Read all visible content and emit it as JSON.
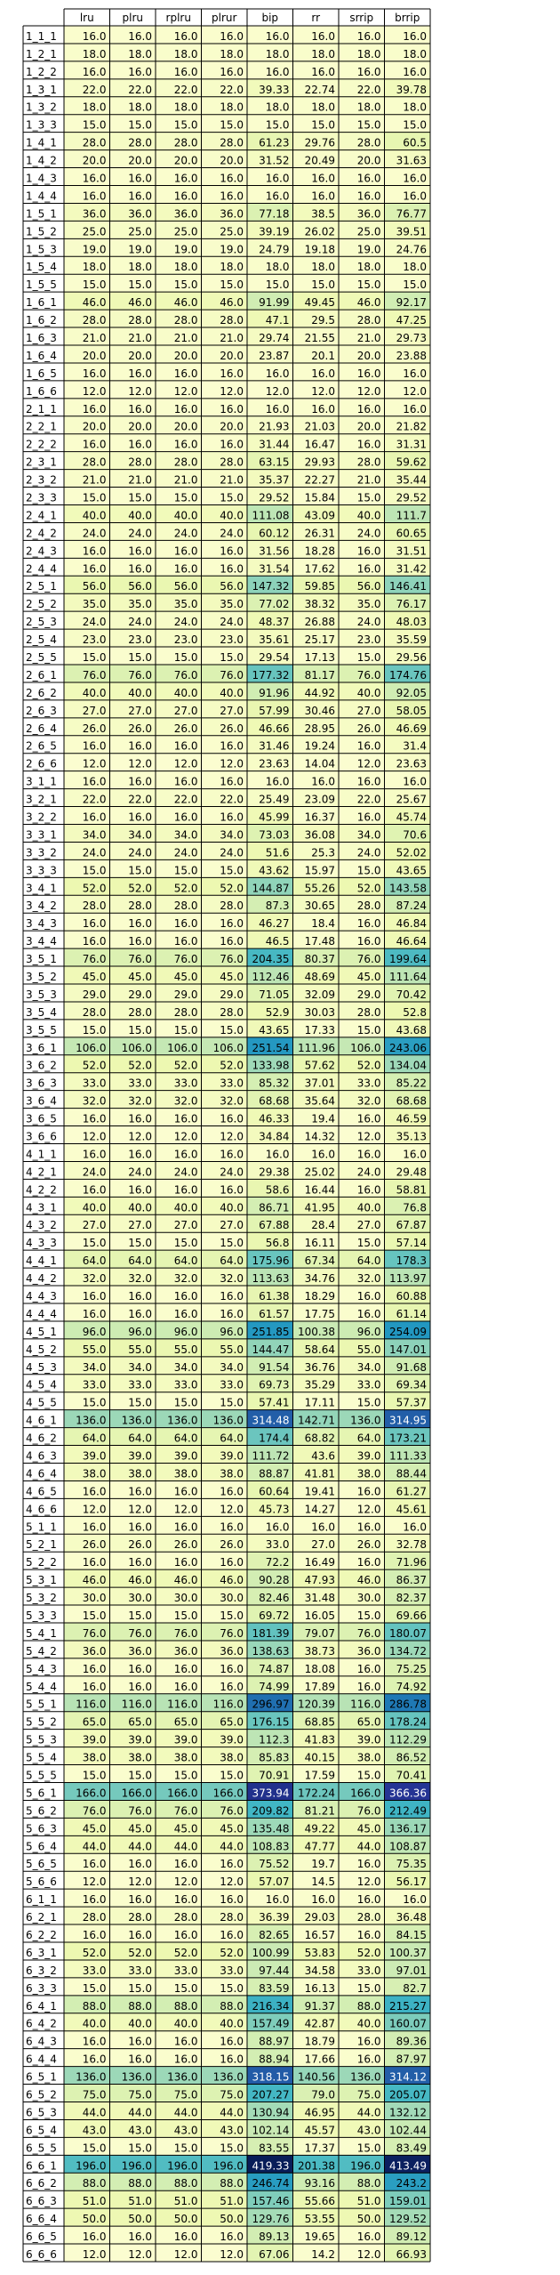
{
  "chart_data": {
    "type": "heatmap",
    "columns": [
      "lru",
      "plru",
      "rplru",
      "plrur",
      "bip",
      "rr",
      "srrip",
      "brrip"
    ],
    "colormap": {
      "name": "YlGnBu",
      "stops": [
        "#ffffd9",
        "#edf8b1",
        "#c7e9b4",
        "#7fcdbb",
        "#41b6c4",
        "#1d91c0",
        "#225ea8",
        "#253494",
        "#081d58"
      ]
    },
    "row_labels": [
      "1_1_1",
      "1_2_1",
      "1_2_2",
      "1_3_1",
      "1_3_2",
      "1_3_3",
      "1_4_1",
      "1_4_2",
      "1_4_3",
      "1_4_4",
      "1_5_1",
      "1_5_2",
      "1_5_3",
      "1_5_4",
      "1_5_5",
      "1_6_1",
      "1_6_2",
      "1_6_3",
      "1_6_4",
      "1_6_5",
      "1_6_6",
      "2_1_1",
      "2_2_1",
      "2_2_2",
      "2_3_1",
      "2_3_2",
      "2_3_3",
      "2_4_1",
      "2_4_2",
      "2_4_3",
      "2_4_4",
      "2_5_1",
      "2_5_2",
      "2_5_3",
      "2_5_4",
      "2_5_5",
      "2_6_1",
      "2_6_2",
      "2_6_3",
      "2_6_4",
      "2_6_5",
      "2_6_6",
      "3_1_1",
      "3_2_1",
      "3_2_2",
      "3_3_1",
      "3_3_2",
      "3_3_3",
      "3_4_1",
      "3_4_2",
      "3_4_3",
      "3_4_4",
      "3_5_1",
      "3_5_2",
      "3_5_3",
      "3_5_4",
      "3_5_5",
      "3_6_1",
      "3_6_2",
      "3_6_3",
      "3_6_4",
      "3_6_5",
      "3_6_6",
      "4_1_1",
      "4_2_1",
      "4_2_2",
      "4_3_1",
      "4_3_2",
      "4_3_3",
      "4_4_1",
      "4_4_2",
      "4_4_3",
      "4_4_4",
      "4_5_1",
      "4_5_2",
      "4_5_3",
      "4_5_4",
      "4_5_5",
      "4_6_1",
      "4_6_2",
      "4_6_3",
      "4_6_4",
      "4_6_5",
      "4_6_6",
      "5_1_1",
      "5_2_1",
      "5_2_2",
      "5_3_1",
      "5_3_2",
      "5_3_3",
      "5_4_1",
      "5_4_2",
      "5_4_3",
      "5_4_4",
      "5_5_1",
      "5_5_2",
      "5_5_3",
      "5_5_4",
      "5_5_5",
      "5_6_1",
      "5_6_2",
      "5_6_3",
      "5_6_4",
      "5_6_5",
      "5_6_6",
      "6_1_1",
      "6_2_1",
      "6_2_2",
      "6_3_1",
      "6_3_2",
      "6_3_3",
      "6_4_1",
      "6_4_2",
      "6_4_3",
      "6_4_4",
      "6_5_1",
      "6_5_2",
      "6_5_3",
      "6_5_4",
      "6_5_5",
      "6_6_1",
      "6_6_2",
      "6_6_3",
      "6_6_4",
      "6_6_5",
      "6_6_6"
    ],
    "values": [
      [
        16.0,
        16.0,
        16.0,
        16.0,
        16.0,
        16.0,
        16.0,
        16.0
      ],
      [
        18.0,
        18.0,
        18.0,
        18.0,
        18.0,
        18.0,
        18.0,
        18.0
      ],
      [
        16.0,
        16.0,
        16.0,
        16.0,
        16.0,
        16.0,
        16.0,
        16.0
      ],
      [
        22.0,
        22.0,
        22.0,
        22.0,
        39.33,
        22.74,
        22.0,
        39.78
      ],
      [
        18.0,
        18.0,
        18.0,
        18.0,
        18.0,
        18.0,
        18.0,
        18.0
      ],
      [
        15.0,
        15.0,
        15.0,
        15.0,
        15.0,
        15.0,
        15.0,
        15.0
      ],
      [
        28.0,
        28.0,
        28.0,
        28.0,
        61.23,
        29.76,
        28.0,
        60.5
      ],
      [
        20.0,
        20.0,
        20.0,
        20.0,
        31.52,
        20.49,
        20.0,
        31.63
      ],
      [
        16.0,
        16.0,
        16.0,
        16.0,
        16.0,
        16.0,
        16.0,
        16.0
      ],
      [
        16.0,
        16.0,
        16.0,
        16.0,
        16.0,
        16.0,
        16.0,
        16.0
      ],
      [
        36.0,
        36.0,
        36.0,
        36.0,
        77.18,
        38.5,
        36.0,
        76.77
      ],
      [
        25.0,
        25.0,
        25.0,
        25.0,
        39.19,
        26.02,
        25.0,
        39.51
      ],
      [
        19.0,
        19.0,
        19.0,
        19.0,
        24.79,
        19.18,
        19.0,
        24.76
      ],
      [
        18.0,
        18.0,
        18.0,
        18.0,
        18.0,
        18.0,
        18.0,
        18.0
      ],
      [
        15.0,
        15.0,
        15.0,
        15.0,
        15.0,
        15.0,
        15.0,
        15.0
      ],
      [
        46.0,
        46.0,
        46.0,
        46.0,
        91.99,
        49.45,
        46.0,
        92.17
      ],
      [
        28.0,
        28.0,
        28.0,
        28.0,
        47.1,
        29.5,
        28.0,
        47.25
      ],
      [
        21.0,
        21.0,
        21.0,
        21.0,
        29.74,
        21.55,
        21.0,
        29.73
      ],
      [
        20.0,
        20.0,
        20.0,
        20.0,
        23.87,
        20.1,
        20.0,
        23.88
      ],
      [
        16.0,
        16.0,
        16.0,
        16.0,
        16.0,
        16.0,
        16.0,
        16.0
      ],
      [
        12.0,
        12.0,
        12.0,
        12.0,
        12.0,
        12.0,
        12.0,
        12.0
      ],
      [
        16.0,
        16.0,
        16.0,
        16.0,
        16.0,
        16.0,
        16.0,
        16.0
      ],
      [
        20.0,
        20.0,
        20.0,
        20.0,
        21.93,
        21.03,
        20.0,
        21.82
      ],
      [
        16.0,
        16.0,
        16.0,
        16.0,
        31.44,
        16.47,
        16.0,
        31.31
      ],
      [
        28.0,
        28.0,
        28.0,
        28.0,
        63.15,
        29.93,
        28.0,
        59.62
      ],
      [
        21.0,
        21.0,
        21.0,
        21.0,
        35.37,
        22.27,
        21.0,
        35.44
      ],
      [
        15.0,
        15.0,
        15.0,
        15.0,
        29.52,
        15.84,
        15.0,
        29.52
      ],
      [
        40.0,
        40.0,
        40.0,
        40.0,
        111.08,
        43.09,
        40.0,
        111.7
      ],
      [
        24.0,
        24.0,
        24.0,
        24.0,
        60.12,
        26.31,
        24.0,
        60.65
      ],
      [
        16.0,
        16.0,
        16.0,
        16.0,
        31.56,
        18.28,
        16.0,
        31.51
      ],
      [
        16.0,
        16.0,
        16.0,
        16.0,
        31.54,
        17.62,
        16.0,
        31.42
      ],
      [
        56.0,
        56.0,
        56.0,
        56.0,
        147.32,
        59.85,
        56.0,
        146.41
      ],
      [
        35.0,
        35.0,
        35.0,
        35.0,
        77.02,
        38.32,
        35.0,
        76.17
      ],
      [
        24.0,
        24.0,
        24.0,
        24.0,
        48.37,
        26.88,
        24.0,
        48.03
      ],
      [
        23.0,
        23.0,
        23.0,
        23.0,
        35.61,
        25.17,
        23.0,
        35.59
      ],
      [
        15.0,
        15.0,
        15.0,
        15.0,
        29.54,
        17.13,
        15.0,
        29.56
      ],
      [
        76.0,
        76.0,
        76.0,
        76.0,
        177.32,
        81.17,
        76.0,
        174.76
      ],
      [
        40.0,
        40.0,
        40.0,
        40.0,
        91.96,
        44.92,
        40.0,
        92.05
      ],
      [
        27.0,
        27.0,
        27.0,
        27.0,
        57.99,
        30.46,
        27.0,
        58.05
      ],
      [
        26.0,
        26.0,
        26.0,
        26.0,
        46.66,
        28.95,
        26.0,
        46.69
      ],
      [
        16.0,
        16.0,
        16.0,
        16.0,
        31.46,
        19.24,
        16.0,
        31.4
      ],
      [
        12.0,
        12.0,
        12.0,
        12.0,
        23.63,
        14.04,
        12.0,
        23.63
      ],
      [
        16.0,
        16.0,
        16.0,
        16.0,
        16.0,
        16.0,
        16.0,
        16.0
      ],
      [
        22.0,
        22.0,
        22.0,
        22.0,
        25.49,
        23.09,
        22.0,
        25.67
      ],
      [
        16.0,
        16.0,
        16.0,
        16.0,
        45.99,
        16.37,
        16.0,
        45.74
      ],
      [
        34.0,
        34.0,
        34.0,
        34.0,
        73.03,
        36.08,
        34.0,
        70.6
      ],
      [
        24.0,
        24.0,
        24.0,
        24.0,
        51.6,
        25.3,
        24.0,
        52.02
      ],
      [
        15.0,
        15.0,
        15.0,
        15.0,
        43.62,
        15.97,
        15.0,
        43.65
      ],
      [
        52.0,
        52.0,
        52.0,
        52.0,
        144.87,
        55.26,
        52.0,
        143.58
      ],
      [
        28.0,
        28.0,
        28.0,
        28.0,
        87.3,
        30.65,
        28.0,
        87.24
      ],
      [
        16.0,
        16.0,
        16.0,
        16.0,
        46.27,
        18.4,
        16.0,
        46.84
      ],
      [
        16.0,
        16.0,
        16.0,
        16.0,
        46.5,
        17.48,
        16.0,
        46.64
      ],
      [
        76.0,
        76.0,
        76.0,
        76.0,
        204.35,
        80.37,
        76.0,
        199.64
      ],
      [
        45.0,
        45.0,
        45.0,
        45.0,
        112.46,
        48.69,
        45.0,
        111.64
      ],
      [
        29.0,
        29.0,
        29.0,
        29.0,
        71.05,
        32.09,
        29.0,
        70.42
      ],
      [
        28.0,
        28.0,
        28.0,
        28.0,
        52.9,
        30.03,
        28.0,
        52.8
      ],
      [
        15.0,
        15.0,
        15.0,
        15.0,
        43.65,
        17.33,
        15.0,
        43.68
      ],
      [
        106.0,
        106.0,
        106.0,
        106.0,
        251.54,
        111.96,
        106.0,
        243.06
      ],
      [
        52.0,
        52.0,
        52.0,
        52.0,
        133.98,
        57.62,
        52.0,
        134.04
      ],
      [
        33.0,
        33.0,
        33.0,
        33.0,
        85.32,
        37.01,
        33.0,
        85.22
      ],
      [
        32.0,
        32.0,
        32.0,
        32.0,
        68.68,
        35.64,
        32.0,
        68.68
      ],
      [
        16.0,
        16.0,
        16.0,
        16.0,
        46.33,
        19.4,
        16.0,
        46.59
      ],
      [
        12.0,
        12.0,
        12.0,
        12.0,
        34.84,
        14.32,
        12.0,
        35.13
      ],
      [
        16.0,
        16.0,
        16.0,
        16.0,
        16.0,
        16.0,
        16.0,
        16.0
      ],
      [
        24.0,
        24.0,
        24.0,
        24.0,
        29.38,
        25.02,
        24.0,
        29.48
      ],
      [
        16.0,
        16.0,
        16.0,
        16.0,
        58.6,
        16.44,
        16.0,
        58.81
      ],
      [
        40.0,
        40.0,
        40.0,
        40.0,
        86.71,
        41.95,
        40.0,
        76.8
      ],
      [
        27.0,
        27.0,
        27.0,
        27.0,
        67.88,
        28.4,
        27.0,
        67.87
      ],
      [
        15.0,
        15.0,
        15.0,
        15.0,
        56.8,
        16.11,
        15.0,
        57.14
      ],
      [
        64.0,
        64.0,
        64.0,
        64.0,
        175.96,
        67.34,
        64.0,
        178.3
      ],
      [
        32.0,
        32.0,
        32.0,
        32.0,
        113.63,
        34.76,
        32.0,
        113.97
      ],
      [
        16.0,
        16.0,
        16.0,
        16.0,
        61.38,
        18.29,
        16.0,
        60.88
      ],
      [
        16.0,
        16.0,
        16.0,
        16.0,
        61.57,
        17.75,
        16.0,
        61.14
      ],
      [
        96.0,
        96.0,
        96.0,
        96.0,
        251.85,
        100.38,
        96.0,
        254.09
      ],
      [
        55.0,
        55.0,
        55.0,
        55.0,
        144.47,
        58.64,
        55.0,
        147.01
      ],
      [
        34.0,
        34.0,
        34.0,
        34.0,
        91.54,
        36.76,
        34.0,
        91.68
      ],
      [
        33.0,
        33.0,
        33.0,
        33.0,
        69.73,
        35.29,
        33.0,
        69.34
      ],
      [
        15.0,
        15.0,
        15.0,
        15.0,
        57.41,
        17.11,
        15.0,
        57.37
      ],
      [
        136.0,
        136.0,
        136.0,
        136.0,
        314.48,
        142.71,
        136.0,
        314.95
      ],
      [
        64.0,
        64.0,
        64.0,
        64.0,
        174.4,
        68.82,
        64.0,
        173.21
      ],
      [
        39.0,
        39.0,
        39.0,
        39.0,
        111.72,
        43.6,
        39.0,
        111.33
      ],
      [
        38.0,
        38.0,
        38.0,
        38.0,
        88.87,
        41.81,
        38.0,
        88.44
      ],
      [
        16.0,
        16.0,
        16.0,
        16.0,
        60.64,
        19.41,
        16.0,
        61.27
      ],
      [
        12.0,
        12.0,
        12.0,
        12.0,
        45.73,
        14.27,
        12.0,
        45.61
      ],
      [
        16.0,
        16.0,
        16.0,
        16.0,
        16.0,
        16.0,
        16.0,
        16.0
      ],
      [
        26.0,
        26.0,
        26.0,
        26.0,
        33.0,
        27.0,
        26.0,
        32.78
      ],
      [
        16.0,
        16.0,
        16.0,
        16.0,
        72.2,
        16.49,
        16.0,
        71.96
      ],
      [
        46.0,
        46.0,
        46.0,
        46.0,
        90.28,
        47.93,
        46.0,
        86.37
      ],
      [
        30.0,
        30.0,
        30.0,
        30.0,
        82.46,
        31.48,
        30.0,
        82.37
      ],
      [
        15.0,
        15.0,
        15.0,
        15.0,
        69.72,
        16.05,
        15.0,
        69.66
      ],
      [
        76.0,
        76.0,
        76.0,
        76.0,
        181.39,
        79.07,
        76.0,
        180.07
      ],
      [
        36.0,
        36.0,
        36.0,
        36.0,
        138.63,
        38.73,
        36.0,
        134.72
      ],
      [
        16.0,
        16.0,
        16.0,
        16.0,
        74.87,
        18.08,
        16.0,
        75.25
      ],
      [
        16.0,
        16.0,
        16.0,
        16.0,
        74.99,
        17.89,
        16.0,
        74.92
      ],
      [
        116.0,
        116.0,
        116.0,
        116.0,
        296.97,
        120.39,
        116.0,
        286.78
      ],
      [
        65.0,
        65.0,
        65.0,
        65.0,
        176.15,
        68.85,
        65.0,
        178.24
      ],
      [
        39.0,
        39.0,
        39.0,
        39.0,
        112.3,
        41.83,
        39.0,
        112.29
      ],
      [
        38.0,
        38.0,
        38.0,
        38.0,
        85.83,
        40.15,
        38.0,
        86.52
      ],
      [
        15.0,
        15.0,
        15.0,
        15.0,
        70.91,
        17.59,
        15.0,
        70.41
      ],
      [
        166.0,
        166.0,
        166.0,
        166.0,
        373.94,
        172.24,
        166.0,
        366.36
      ],
      [
        76.0,
        76.0,
        76.0,
        76.0,
        209.82,
        81.21,
        76.0,
        212.49
      ],
      [
        45.0,
        45.0,
        45.0,
        45.0,
        135.48,
        49.22,
        45.0,
        136.17
      ],
      [
        44.0,
        44.0,
        44.0,
        44.0,
        108.83,
        47.77,
        44.0,
        108.87
      ],
      [
        16.0,
        16.0,
        16.0,
        16.0,
        75.52,
        19.7,
        16.0,
        75.35
      ],
      [
        12.0,
        12.0,
        12.0,
        12.0,
        57.07,
        14.5,
        12.0,
        56.17
      ],
      [
        16.0,
        16.0,
        16.0,
        16.0,
        16.0,
        16.0,
        16.0,
        16.0
      ],
      [
        28.0,
        28.0,
        28.0,
        28.0,
        36.39,
        29.03,
        28.0,
        36.48
      ],
      [
        16.0,
        16.0,
        16.0,
        16.0,
        82.65,
        16.57,
        16.0,
        84.15
      ],
      [
        52.0,
        52.0,
        52.0,
        52.0,
        100.99,
        53.83,
        52.0,
        100.37
      ],
      [
        33.0,
        33.0,
        33.0,
        33.0,
        97.44,
        34.58,
        33.0,
        97.01
      ],
      [
        15.0,
        15.0,
        15.0,
        15.0,
        83.59,
        16.13,
        15.0,
        82.7
      ],
      [
        88.0,
        88.0,
        88.0,
        88.0,
        216.34,
        91.37,
        88.0,
        215.27
      ],
      [
        40.0,
        40.0,
        40.0,
        40.0,
        157.49,
        42.87,
        40.0,
        160.07
      ],
      [
        16.0,
        16.0,
        16.0,
        16.0,
        88.97,
        18.79,
        16.0,
        89.36
      ],
      [
        16.0,
        16.0,
        16.0,
        16.0,
        88.94,
        17.66,
        16.0,
        87.97
      ],
      [
        136.0,
        136.0,
        136.0,
        136.0,
        318.15,
        140.56,
        136.0,
        314.12
      ],
      [
        75.0,
        75.0,
        75.0,
        75.0,
        207.27,
        79.0,
        75.0,
        205.07
      ],
      [
        44.0,
        44.0,
        44.0,
        44.0,
        130.94,
        46.95,
        44.0,
        132.12
      ],
      [
        43.0,
        43.0,
        43.0,
        43.0,
        102.14,
        45.57,
        43.0,
        102.44
      ],
      [
        15.0,
        15.0,
        15.0,
        15.0,
        83.55,
        17.37,
        15.0,
        83.49
      ],
      [
        196.0,
        196.0,
        196.0,
        196.0,
        419.33,
        201.38,
        196.0,
        413.49
      ],
      [
        88.0,
        88.0,
        88.0,
        88.0,
        246.74,
        93.16,
        88.0,
        243.2
      ],
      [
        51.0,
        51.0,
        51.0,
        51.0,
        157.46,
        55.66,
        51.0,
        159.01
      ],
      [
        50.0,
        50.0,
        50.0,
        50.0,
        129.76,
        53.55,
        50.0,
        129.52
      ],
      [
        16.0,
        16.0,
        16.0,
        16.0,
        89.13,
        19.65,
        16.0,
        89.12
      ],
      [
        12.0,
        12.0,
        12.0,
        12.0,
        67.06,
        14.2,
        12.0,
        66.93
      ]
    ]
  }
}
